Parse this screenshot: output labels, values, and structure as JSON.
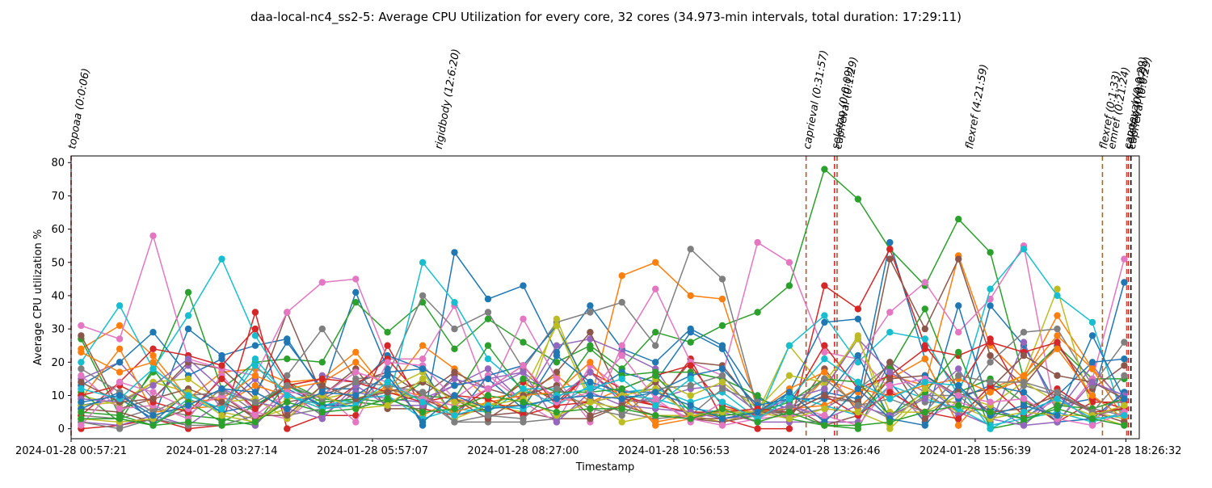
{
  "chart_data": {
    "type": "line",
    "title": "daa-local-nc4_ss2-5: Average CPU Utilization for every core, 32 cores (34.973-min intervals, total duration: 17:29:11)",
    "xlabel": "Timestamp",
    "ylabel": "Average CPU utilization %",
    "ylim": [
      -3,
      82
    ],
    "xlim": [
      0,
      63.8
    ],
    "grid": false,
    "legend": "none",
    "yticks": [
      0,
      10,
      20,
      30,
      40,
      50,
      60,
      70,
      80
    ],
    "xticks": [
      {
        "pos": 0,
        "label": "2024-01-28 00:57:21"
      },
      {
        "pos": 9,
        "label": "2024-01-28 03:27:14"
      },
      {
        "pos": 18,
        "label": "2024-01-28 05:57:07"
      },
      {
        "pos": 27,
        "label": "2024-01-28 08:27:00"
      },
      {
        "pos": 36,
        "label": "2024-01-28 10:56:53"
      },
      {
        "pos": 45,
        "label": "2024-01-28 13:26:46"
      },
      {
        "pos": 54,
        "label": "2024-01-28 15:56:39"
      },
      {
        "pos": 63,
        "label": "2024-01-28 18:26:32"
      }
    ],
    "x": [
      0.6,
      2.9,
      4.9,
      7,
      9,
      11,
      12.9,
      15,
      17,
      18.9,
      21,
      22.9,
      24.9,
      27,
      29,
      31,
      32.9,
      34.9,
      37,
      38.9,
      41,
      42.9,
      45,
      47,
      48.9,
      51,
      53,
      54.9,
      56.9,
      58.9,
      61,
      62.9
    ],
    "annotations": [
      {
        "pos": 0.0,
        "label": "topoaa (0:0:06)",
        "color": "#d62728",
        "style": "dashed"
      },
      {
        "pos": 21.9,
        "label": "rigidbody (12:6:20)",
        "color": "#000000",
        "style": "none"
      },
      {
        "pos": 43.9,
        "label": "caprieval (0:31:57)",
        "color": "#b5533c",
        "style": "dashed"
      },
      {
        "pos": 45.6,
        "label": "seletop (0:0:09)",
        "color": "#d62728",
        "style": "dashed"
      },
      {
        "pos": 45.75,
        "label": "caprieval (0:1:29)",
        "color": "#b5533c",
        "style": "dashed"
      },
      {
        "pos": 53.6,
        "label": "flexref (4:21:59)",
        "color": "#000000",
        "style": "none"
      },
      {
        "pos": 61.6,
        "label": "flexref (0:1:33)",
        "color": "#9a6b3a",
        "style": "dashed"
      },
      {
        "pos": 62.1,
        "label": "emref (0:21:24)",
        "color": "#000000",
        "style": "none"
      },
      {
        "pos": 63.05,
        "label": "caprieval (0:0:29)",
        "color": "#b5533c",
        "style": "dashed"
      },
      {
        "pos": 63.15,
        "label": "seletop (0:0:07)",
        "color": "#d62728",
        "style": "dashed"
      },
      {
        "pos": 63.3,
        "label": "caprieval (0:0:29)",
        "color": "#000000",
        "style": "dashed"
      }
    ],
    "series": [
      {
        "color": "#1f77b4",
        "values": [
          7,
          9,
          3,
          30,
          22,
          25,
          27,
          11,
          41,
          18,
          1,
          53,
          39,
          43,
          23,
          37,
          24,
          20,
          30,
          25,
          9,
          6,
          11,
          9,
          56,
          21,
          1,
          37,
          25,
          7,
          9,
          44
        ]
      },
      {
        "color": "#ff7f0e",
        "values": [
          24,
          31,
          22,
          9,
          17,
          18,
          14,
          15,
          23,
          11,
          25,
          18,
          9,
          11,
          16,
          8,
          46,
          50,
          40,
          39,
          6,
          4,
          15,
          11,
          16,
          13,
          52,
          25,
          15,
          34,
          18,
          8
        ]
      },
      {
        "color": "#2ca02c",
        "values": [
          27,
          4,
          17,
          41,
          12,
          20,
          21,
          20,
          38,
          29,
          38,
          24,
          33,
          26,
          20,
          25,
          18,
          29,
          26,
          31,
          35,
          43,
          78,
          69,
          54,
          43,
          63,
          53,
          15,
          25,
          15,
          15
        ]
      },
      {
        "color": "#d62728",
        "values": [
          0,
          1,
          3,
          0,
          1,
          35,
          0,
          4,
          4,
          25,
          6,
          4,
          6,
          14,
          8,
          17,
          9,
          7,
          21,
          3,
          0,
          0,
          43,
          36,
          54,
          25,
          12,
          27,
          9,
          2,
          8,
          8
        ]
      },
      {
        "color": "#9467bd",
        "values": [
          15,
          20,
          9,
          19,
          6,
          15,
          5,
          16,
          14,
          11,
          9,
          13,
          18,
          8,
          25,
          27,
          23,
          18,
          3,
          5,
          2,
          2,
          2,
          2,
          20,
          13,
          5,
          1,
          26,
          5,
          19,
          7
        ]
      },
      {
        "color": "#8c564b",
        "values": [
          28,
          6,
          9,
          20,
          18,
          9,
          35,
          10,
          14,
          17,
          10,
          17,
          12,
          9,
          17,
          29,
          9,
          8,
          20,
          19,
          6,
          3,
          18,
          5,
          51,
          30,
          51,
          22,
          13,
          25,
          12,
          19
        ]
      },
      {
        "color": "#e377c2",
        "values": [
          31,
          27,
          58,
          21,
          18,
          16,
          35,
          44,
          45,
          21,
          21,
          37,
          10,
          33,
          15,
          2,
          25,
          42,
          20,
          16,
          56,
          50,
          23,
          21,
          35,
          44,
          29,
          39,
          55,
          2,
          15,
          51
        ]
      },
      {
        "color": "#7f7f7f",
        "values": [
          4,
          3,
          6,
          4,
          12,
          5,
          16,
          30,
          15,
          16,
          40,
          30,
          35,
          18,
          32,
          35,
          38,
          25,
          54,
          45,
          6,
          4,
          6,
          12,
          19,
          8,
          8,
          20,
          29,
          30,
          13,
          26
        ]
      },
      {
        "color": "#bcbd22",
        "values": [
          10,
          7,
          14,
          11,
          5,
          3,
          6,
          9,
          11,
          11,
          9,
          7,
          7,
          5,
          33,
          9,
          2,
          4,
          4,
          2,
          5,
          25,
          12,
          28,
          0,
          10,
          5,
          11,
          16,
          42,
          5,
          3
        ]
      },
      {
        "color": "#17becf",
        "values": [
          20,
          37,
          18,
          34,
          51,
          28,
          13,
          7,
          8,
          7,
          50,
          38,
          21,
          12,
          12,
          14,
          11,
          12,
          8,
          11,
          3,
          25,
          34,
          20,
          29,
          27,
          10,
          42,
          54,
          40,
          32,
          2
        ]
      },
      {
        "color": "#1f77b4",
        "values": [
          13,
          20,
          29,
          16,
          21,
          11,
          26,
          12,
          12,
          22,
          18,
          3,
          16,
          19,
          31,
          11,
          17,
          14,
          29,
          24,
          3,
          11,
          32,
          33,
          14,
          2,
          37,
          6,
          3,
          10,
          20,
          21
        ]
      },
      {
        "color": "#ff7f0e",
        "values": [
          9,
          24,
          5,
          6,
          7,
          13,
          10,
          6,
          7,
          13,
          4,
          9,
          7,
          7,
          9,
          8,
          12,
          1,
          3,
          6,
          5,
          12,
          17,
          6,
          15,
          21,
          1,
          12,
          16,
          28,
          18,
          3
        ]
      },
      {
        "color": "#2ca02c",
        "values": [
          11,
          2,
          18,
          4,
          3,
          1,
          14,
          9,
          8,
          7,
          14,
          9,
          25,
          11,
          10,
          24,
          16,
          17,
          17,
          15,
          10,
          3,
          1,
          0,
          18,
          36,
          11,
          15,
          8,
          4,
          4,
          6
        ]
      },
      {
        "color": "#d62728",
        "values": [
          4,
          14,
          24,
          22,
          19,
          30,
          14,
          6,
          13,
          21,
          9,
          5,
          12,
          19,
          7,
          17,
          12,
          16,
          19,
          7,
          4,
          7,
          25,
          12,
          16,
          24,
          22,
          26,
          23,
          26,
          9,
          6
        ]
      },
      {
        "color": "#9467bd",
        "values": [
          2,
          1,
          4,
          1,
          8,
          1,
          11,
          4,
          11,
          9,
          8,
          13,
          15,
          17,
          9,
          17,
          8,
          9,
          12,
          13,
          5,
          9,
          12,
          27,
          17,
          11,
          4,
          7,
          1,
          10,
          2,
          11
        ]
      },
      {
        "color": "#8c564b",
        "values": [
          6,
          5,
          2,
          6,
          10,
          3,
          8,
          10,
          18,
          6,
          6,
          16,
          4,
          5,
          3,
          3,
          7,
          14,
          3,
          2,
          4,
          7,
          1,
          4,
          15,
          16,
          10,
          12,
          22,
          16,
          14,
          9
        ]
      },
      {
        "color": "#e377c2",
        "values": [
          16,
          6,
          7,
          3,
          16,
          5,
          3,
          11,
          2,
          20,
          19,
          9,
          16,
          8,
          2,
          19,
          12,
          8,
          3,
          1,
          3,
          7,
          4,
          22,
          12,
          3,
          8,
          5,
          3,
          9,
          3,
          7
        ]
      },
      {
        "color": "#7f7f7f",
        "values": [
          2,
          0,
          3,
          1,
          1,
          4,
          4,
          6,
          8,
          12,
          9,
          2,
          2,
          2,
          3,
          9,
          5,
          3,
          4,
          12,
          8,
          3,
          9,
          8,
          3,
          10,
          10,
          2,
          13,
          10,
          6,
          4
        ]
      },
      {
        "color": "#bcbd22",
        "values": [
          7,
          8,
          14,
          15,
          8,
          9,
          3,
          13,
          9,
          12,
          17,
          3,
          7,
          11,
          31,
          8,
          6,
          15,
          10,
          14,
          6,
          16,
          14,
          27,
          5,
          5,
          10,
          7,
          14,
          8,
          4,
          1
        ]
      },
      {
        "color": "#17becf",
        "values": [
          3,
          3,
          1,
          9,
          5,
          19,
          10,
          7,
          9,
          10,
          3,
          6,
          5,
          12,
          7,
          13,
          10,
          9,
          6,
          5,
          5,
          10,
          7,
          4,
          13,
          9,
          6,
          1,
          3,
          5,
          2,
          5
        ]
      },
      {
        "color": "#1f77b4",
        "values": [
          6,
          11,
          2,
          11,
          5,
          7,
          12,
          7,
          7,
          17,
          18,
          13,
          15,
          6,
          22,
          14,
          11,
          11,
          16,
          18,
          7,
          9,
          9,
          22,
          3,
          16,
          9,
          13,
          11,
          2,
          3,
          11
        ]
      },
      {
        "color": "#ff7f0e",
        "values": [
          23,
          17,
          20,
          8,
          9,
          16,
          12,
          14,
          20,
          12,
          10,
          5,
          8,
          10,
          11,
          20,
          9,
          2,
          4,
          4,
          5,
          6,
          7,
          12,
          10,
          13,
          15,
          11,
          15,
          24,
          10,
          3
        ]
      },
      {
        "color": "#2ca02c",
        "values": [
          5,
          4,
          1,
          8,
          2,
          7,
          13,
          8,
          9,
          8,
          10,
          9,
          5,
          15,
          11,
          11,
          12,
          16,
          5,
          4,
          5,
          8,
          15,
          14,
          4,
          11,
          23,
          0,
          2,
          7,
          6,
          9
        ]
      },
      {
        "color": "#d62728",
        "values": [
          10,
          13,
          8,
          5,
          15,
          6,
          13,
          15,
          14,
          11,
          8,
          10,
          9,
          4,
          7,
          8,
          10,
          7,
          5,
          5,
          6,
          5,
          10,
          4,
          11,
          5,
          3,
          13,
          4,
          12,
          5,
          6
        ]
      },
      {
        "color": "#9467bd",
        "values": [
          9,
          8,
          13,
          21,
          12,
          8,
          6,
          3,
          13,
          7,
          7,
          15,
          12,
          17,
          2,
          11,
          7,
          6,
          5,
          3,
          4,
          7,
          3,
          7,
          4,
          9,
          18,
          3,
          1,
          2,
          14,
          10
        ]
      },
      {
        "color": "#8c564b",
        "values": [
          14,
          8,
          9,
          12,
          8,
          4,
          4,
          13,
          9,
          11,
          14,
          9,
          3,
          10,
          13,
          4,
          7,
          4,
          3,
          3,
          5,
          5,
          10,
          8,
          20,
          3,
          12,
          5,
          6,
          10,
          5,
          2
        ]
      },
      {
        "color": "#e377c2",
        "values": [
          1,
          14,
          11,
          6,
          10,
          4,
          11,
          10,
          17,
          14,
          9,
          7,
          12,
          19,
          8,
          11,
          22,
          9,
          2,
          8,
          3,
          4,
          4,
          1,
          13,
          15,
          10,
          8,
          9,
          3,
          1,
          5
        ]
      },
      {
        "color": "#7f7f7f",
        "values": [
          18,
          11,
          5,
          10,
          11,
          8,
          13,
          9,
          14,
          13,
          11,
          2,
          4,
          3,
          12,
          6,
          4,
          12,
          13,
          16,
          4,
          6,
          15,
          7,
          9,
          5,
          16,
          14,
          14,
          11,
          5,
          16
        ]
      },
      {
        "color": "#bcbd22",
        "values": [
          3,
          2,
          3,
          11,
          4,
          2,
          9,
          10,
          6,
          7,
          15,
          8,
          7,
          9,
          4,
          8,
          10,
          12,
          4,
          5,
          5,
          3,
          6,
          5,
          1,
          12,
          7,
          3,
          5,
          4,
          4,
          7
        ]
      },
      {
        "color": "#17becf",
        "values": [
          12,
          9,
          18,
          10,
          6,
          21,
          10,
          6,
          7,
          14,
          8,
          4,
          7,
          6,
          10,
          12,
          15,
          7,
          15,
          8,
          3,
          9,
          21,
          14,
          9,
          14,
          13,
          0,
          5,
          9,
          3,
          4
        ]
      },
      {
        "color": "#1f77b4",
        "values": [
          8,
          10,
          4,
          7,
          12,
          11,
          6,
          11,
          10,
          16,
          2,
          10,
          6,
          7,
          9,
          10,
          9,
          11,
          7,
          3,
          5,
          11,
          2,
          12,
          3,
          1,
          13,
          4,
          7,
          4,
          28,
          9
        ]
      },
      {
        "color": "#2ca02c",
        "values": [
          3,
          3,
          1,
          2,
          1,
          2,
          8,
          5,
          6,
          9,
          5,
          6,
          10,
          8,
          5,
          6,
          6,
          4,
          3,
          6,
          2,
          5,
          1,
          1,
          2,
          5,
          7,
          5,
          3,
          6,
          3,
          1
        ]
      }
    ]
  }
}
